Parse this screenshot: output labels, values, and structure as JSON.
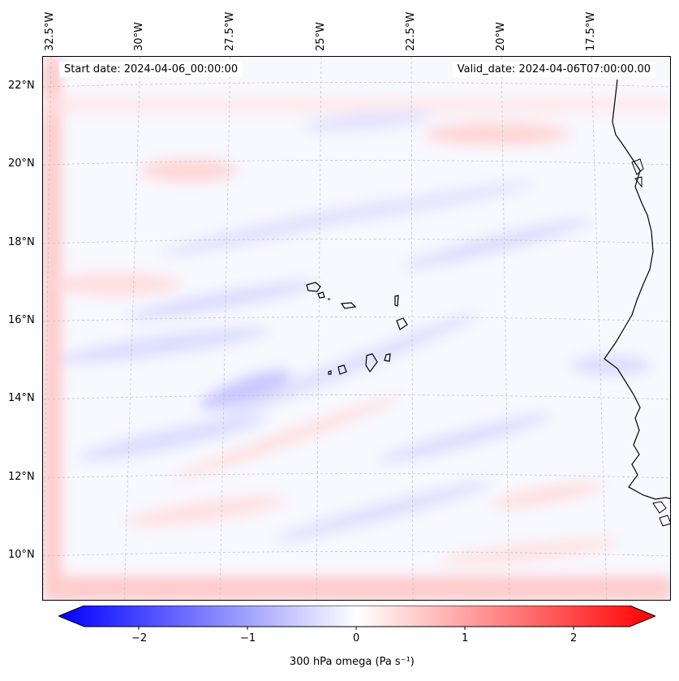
{
  "map": {
    "start_label": "Start date: 2024-04-06_00:00:00",
    "valid_label": "Valid_date: 2024-04-06T07:00:00.00",
    "lon_labels": [
      "32.5°W",
      "30°W",
      "27.5°W",
      "25°W",
      "22.5°W",
      "20°W",
      "17.5°W"
    ],
    "lat_labels": [
      "22°N",
      "20°N",
      "18°N",
      "16°N",
      "14°N",
      "12°N",
      "10°N"
    ],
    "variable": "300 hPa omega",
    "colors": {
      "negative": "#0000ff",
      "zero": "#ffffff",
      "positive": "#ff0000",
      "coast": "#000000",
      "grid": "#bdbdbd"
    }
  },
  "colorbar": {
    "tick_labels": [
      "−2",
      "−1",
      "0",
      "1",
      "2"
    ],
    "label": "300 hPa omega (Pa s⁻¹)",
    "range": [
      -2.5,
      2.5
    ]
  }
}
